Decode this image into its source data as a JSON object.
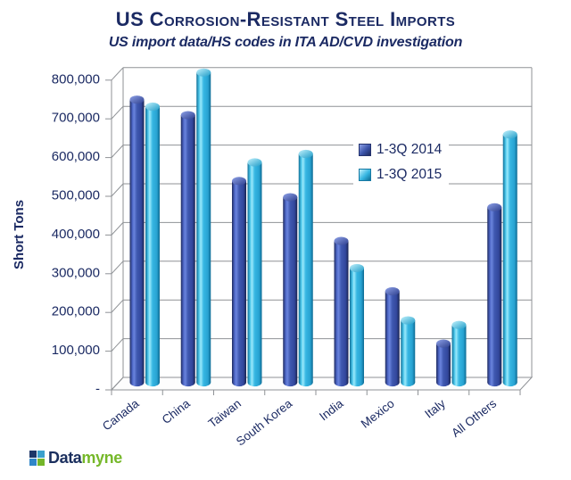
{
  "header": {
    "title": "US Corrosion-Resistant Steel Imports",
    "subtitle": "US import data/HS codes in ITA AD/CVD investigation"
  },
  "chart_data": {
    "type": "bar",
    "style": "3d-cylinder",
    "title": "US Corrosion-Resistant Steel Imports",
    "subtitle": "US import data/HS codes in ITA AD/CVD investigation",
    "ylabel": "Short Tons",
    "xlabel": "",
    "ylim": [
      0,
      800000
    ],
    "ytick_step": 100000,
    "ytick_labels": [
      "-",
      "100,000",
      "200,000",
      "300,000",
      "400,000",
      "500,000",
      "600,000",
      "700,000",
      "800,000"
    ],
    "grid": true,
    "legend_position": "middle-right",
    "categories": [
      "Canada",
      "China",
      "Taiwan",
      "South Korea",
      "India",
      "Mexico",
      "Italy",
      "All Others"
    ],
    "series": [
      {
        "name": "1-3Q 2014",
        "color": "#3A53A8",
        "values": [
          730000,
          690000,
          520000,
          478000,
          365000,
          235000,
          100000,
          452000
        ]
      },
      {
        "name": "1-3Q 2015",
        "color": "#38B6E3",
        "values": [
          712000,
          800000,
          568000,
          590000,
          295000,
          160000,
          148000,
          640000
        ]
      }
    ]
  },
  "logo": {
    "text_dark": "Data",
    "text_green": "myne",
    "navy": "#1B2F5E",
    "green": "#76B82A"
  },
  "colors": {
    "text_navy": "#1B2A63",
    "gridline": "#8F9296",
    "background": "#FFFFFF"
  }
}
